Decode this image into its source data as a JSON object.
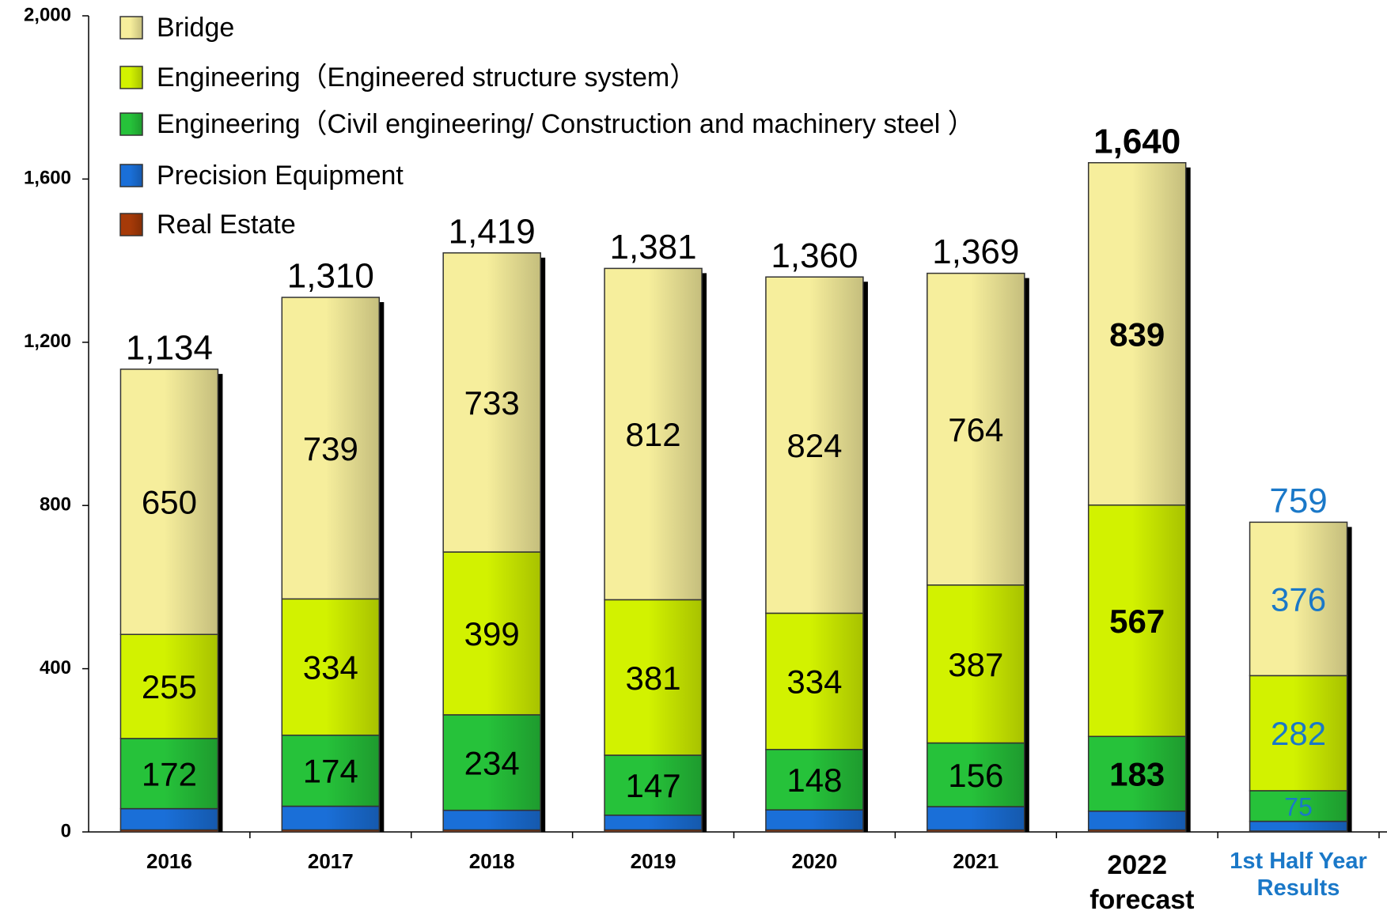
{
  "chart_data": {
    "type": "stacked_bar",
    "categories": [
      "2016",
      "2017",
      "2018",
      "2019",
      "2020",
      "2021",
      "2022 forecast",
      "1st Half Year Results"
    ],
    "series": [
      {
        "name": "Real Estate",
        "color": "#a63a08",
        "values": [
          5,
          5,
          5,
          5,
          5,
          5,
          5,
          2
        ]
      },
      {
        "name": "Precision Equipment",
        "color": "#1a6fd8",
        "values": [
          52,
          58,
          48,
          36,
          49,
          57,
          46,
          24
        ]
      },
      {
        "name": "Engineering（Civil engineering/ Construction and machinery steel ）",
        "color": "#26c23a",
        "values": [
          172,
          174,
          234,
          147,
          148,
          156,
          183,
          75
        ]
      },
      {
        "name": "Engineering（Engineered structure system）",
        "color": "#d2f200",
        "values": [
          255,
          334,
          399,
          381,
          334,
          387,
          567,
          282
        ]
      },
      {
        "name": "Bridge",
        "color": "#f6ee9c",
        "values": [
          650,
          739,
          733,
          812,
          824,
          764,
          839,
          376
        ]
      }
    ],
    "labeled_series": [
      2,
      3,
      4
    ],
    "totals": {
      "values": [
        1134,
        1310,
        1419,
        1381,
        1360,
        1369,
        1640,
        759
      ],
      "value_labels": [
        "1,134",
        "1,310",
        "1,419",
        "1,381",
        "1,360",
        "1,369",
        "1,640",
        "759"
      ]
    },
    "ylim": [
      0,
      2000
    ],
    "yticks": [
      {
        "value": 0,
        "label": "0"
      },
      {
        "value": 400,
        "label": "400"
      },
      {
        "value": 800,
        "label": "800"
      },
      {
        "value": 1200,
        "label": "1,200"
      },
      {
        "value": 1600,
        "label": "1,600"
      },
      {
        "value": 2000,
        "label": "2,000"
      }
    ],
    "legend": "top-left",
    "grid": false
  }
}
